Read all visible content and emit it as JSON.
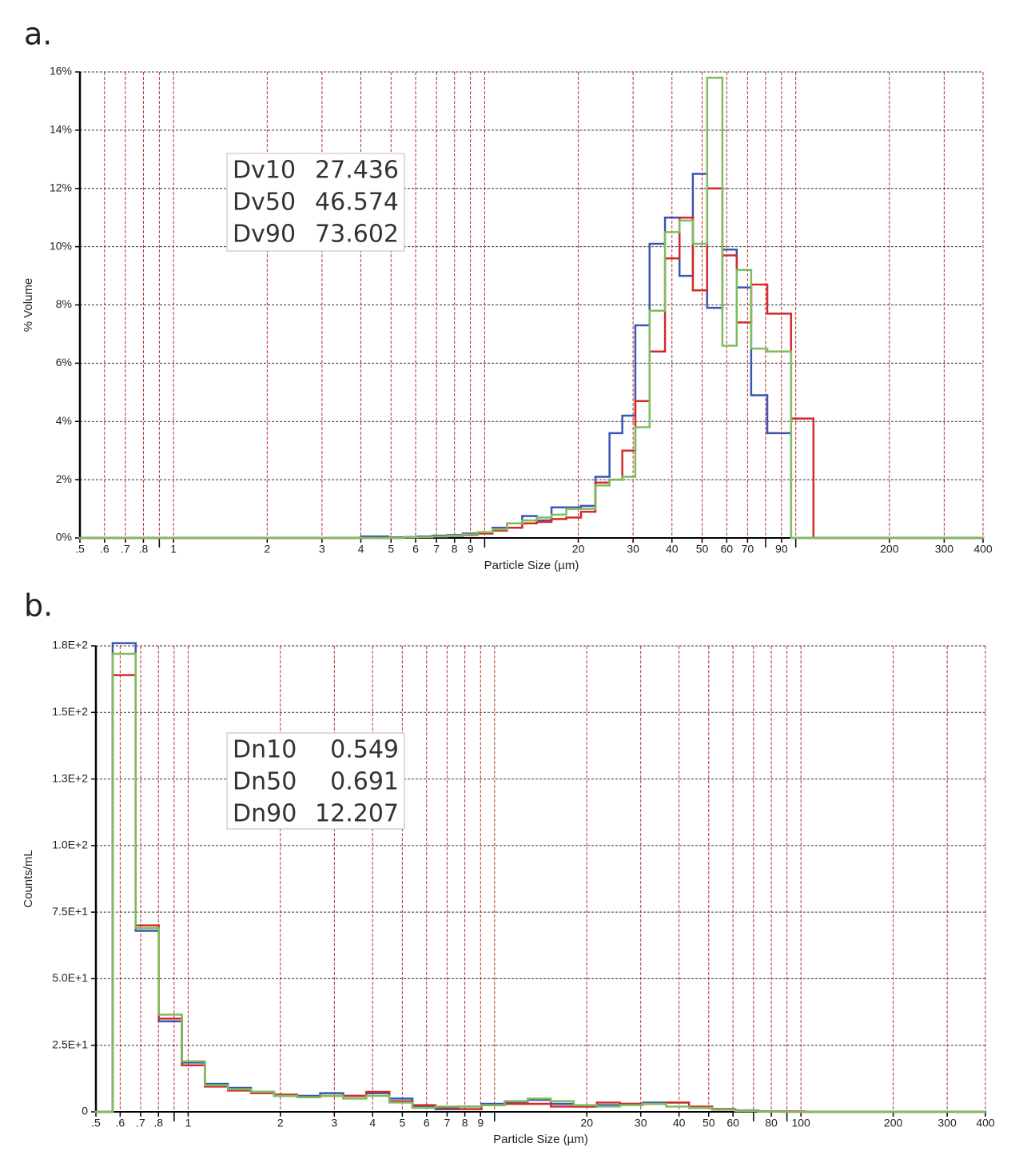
{
  "chart_data": [
    {
      "type": "histogram",
      "panel_label": "a.",
      "ylabel": "% Volume",
      "xlabel": "Particle Size (µm)",
      "xlog": true,
      "xlim": [
        0.5,
        400
      ],
      "ylim": [
        0,
        16
      ],
      "grid": true,
      "xgrid_color": "#b83030",
      "xticks": [
        {
          "value": 0.5,
          "label": ".5"
        },
        {
          "value": 0.6,
          "label": ".6"
        },
        {
          "value": 0.7,
          "label": ".7"
        },
        {
          "value": 0.8,
          "label": ".8"
        },
        1,
        2,
        3,
        4,
        5,
        6,
        7,
        8,
        9,
        20,
        30,
        40,
        50,
        60,
        70,
        90,
        200,
        300,
        400
      ],
      "xminorticks": [
        0.9,
        10,
        80,
        100
      ],
      "yticks": [
        {
          "value": 0,
          "label": "0%"
        },
        {
          "value": 2,
          "label": "2%"
        },
        {
          "value": 4,
          "label": "4%"
        },
        {
          "value": 6,
          "label": "6%"
        },
        {
          "value": 8,
          "label": "8%"
        },
        {
          "value": 10,
          "label": "10%"
        },
        {
          "value": 12,
          "label": "12%"
        },
        {
          "value": 14,
          "label": "14%"
        },
        {
          "value": 16,
          "label": "16%"
        }
      ],
      "bins": [
        0.5,
        4.0,
        4.4,
        4.9,
        5.5,
        6.1,
        6.8,
        7.6,
        8.5,
        9.5,
        10.6,
        11.8,
        13.2,
        14.7,
        16.4,
        18.3,
        20.4,
        22.7,
        25.2,
        27.7,
        30.5,
        33.9,
        38.0,
        42.3,
        46.7,
        51.9,
        58.1,
        64.6,
        71.9,
        81.0,
        96.6,
        114,
        400
      ],
      "series": [
        {
          "color": "#3a55b4",
          "values": [
            0,
            0.05,
            0.05,
            0.02,
            0.03,
            0.05,
            0.08,
            0.1,
            0.15,
            0.2,
            0.35,
            0.5,
            0.75,
            0.6,
            1.05,
            1.05,
            1.1,
            2.1,
            3.6,
            4.2,
            7.3,
            10.1,
            11.0,
            9.0,
            12.5,
            7.9,
            9.9,
            8.6,
            4.9,
            3.6,
            0,
            0
          ]
        },
        {
          "color": "#d42a2a",
          "values": [
            0,
            0,
            0,
            0,
            0.02,
            0.03,
            0.05,
            0.07,
            0.1,
            0.15,
            0.25,
            0.35,
            0.5,
            0.55,
            0.65,
            0.7,
            0.9,
            1.9,
            2.0,
            3.0,
            4.7,
            6.4,
            9.6,
            11.0,
            8.5,
            12.0,
            9.7,
            7.4,
            8.7,
            7.7,
            4.1,
            0
          ]
        },
        {
          "color": "#7ebd5e",
          "values": [
            0,
            0,
            0,
            0,
            0.02,
            0.03,
            0.05,
            0.08,
            0.12,
            0.2,
            0.3,
            0.5,
            0.6,
            0.7,
            0.8,
            1.0,
            1.0,
            1.8,
            2.0,
            2.1,
            3.8,
            7.8,
            10.5,
            10.9,
            10.1,
            15.8,
            6.6,
            9.2,
            6.5,
            6.4,
            0,
            0
          ]
        }
      ],
      "annotations": [
        {
          "label": "Dv10",
          "value": 27.436
        },
        {
          "label": "Dv50",
          "value": 46.574
        },
        {
          "label": "Dv90",
          "value": 73.602
        }
      ]
    },
    {
      "type": "histogram",
      "panel_label": "b.",
      "ylabel": "Counts/mL",
      "xlabel": "Particle Size (µm)",
      "xlog": true,
      "xlim": [
        0.5,
        400
      ],
      "ylim": [
        0,
        175
      ],
      "grid": true,
      "xgrid_color": "#b83030",
      "xticks": [
        {
          "value": 0.5,
          "label": ".5"
        },
        {
          "value": 0.6,
          "label": ".6"
        },
        {
          "value": 0.7,
          "label": ".7"
        },
        {
          "value": 0.8,
          "label": ".8"
        },
        1,
        2,
        3,
        4,
        5,
        6,
        7,
        8,
        9,
        20,
        30,
        40,
        50,
        60,
        80,
        100,
        200,
        300,
        400
      ],
      "xminorticks": [
        0.9,
        10,
        70,
        90
      ],
      "yticks": [
        0,
        {
          "value": 25,
          "label": "2.5E+1"
        },
        {
          "value": 50,
          "label": "5.0E+1"
        },
        {
          "value": 75,
          "label": "7.5E+1"
        },
        {
          "value": 100,
          "label": "1.0E+2"
        },
        {
          "value": 125,
          "label": "1.3E+2"
        },
        {
          "value": 150,
          "label": "1.5E+2"
        },
        {
          "value": 175,
          "label": "1.8E+2"
        }
      ],
      "bins": [
        0.5,
        0.567,
        0.674,
        0.802,
        0.954,
        1.134,
        1.349,
        1.604,
        1.907,
        2.268,
        2.697,
        3.207,
        3.814,
        4.536,
        5.394,
        6.415,
        7.629,
        9.072,
        10.79,
        12.83,
        15.26,
        18.14,
        21.58,
        25.66,
        30.51,
        36.29,
        43.15,
        51.32,
        61.03,
        72.58,
        86.31,
        102.6,
        400
      ],
      "series": [
        {
          "color": "#3a55b4",
          "values": [
            0,
            176,
            68,
            34,
            18.5,
            10.5,
            9,
            7.5,
            6,
            6,
            7,
            6,
            7,
            5,
            2,
            1,
            2,
            3,
            3.5,
            4.5,
            3,
            2,
            2.5,
            3,
            3.5,
            3.5,
            1.5,
            1,
            0.5,
            0.2,
            0,
            0
          ]
        },
        {
          "color": "#d42a2a",
          "values": [
            0,
            164,
            70,
            35,
            17.5,
            9.5,
            8,
            7,
            6.5,
            5.5,
            6,
            6,
            7.5,
            4,
            2.5,
            1.5,
            1,
            2.5,
            3,
            3,
            2,
            2,
            3.5,
            3,
            3,
            3.5,
            2,
            1,
            0.3,
            0.2,
            0.2,
            0
          ]
        },
        {
          "color": "#7ebd5e",
          "values": [
            0,
            172,
            69,
            36.5,
            19,
            10,
            8.5,
            7.5,
            6,
            5.5,
            6,
            5,
            6,
            3.5,
            1.5,
            2,
            2,
            2.5,
            4,
            5,
            4,
            2.5,
            2,
            2.5,
            3,
            2,
            1.5,
            0.8,
            0.3,
            0.1,
            0,
            0
          ]
        }
      ],
      "annotations": [
        {
          "label": "Dn10",
          "value": 0.549
        },
        {
          "label": "Dn50",
          "value": 0.691
        },
        {
          "label": "Dn90",
          "value": 12.207
        }
      ]
    }
  ]
}
